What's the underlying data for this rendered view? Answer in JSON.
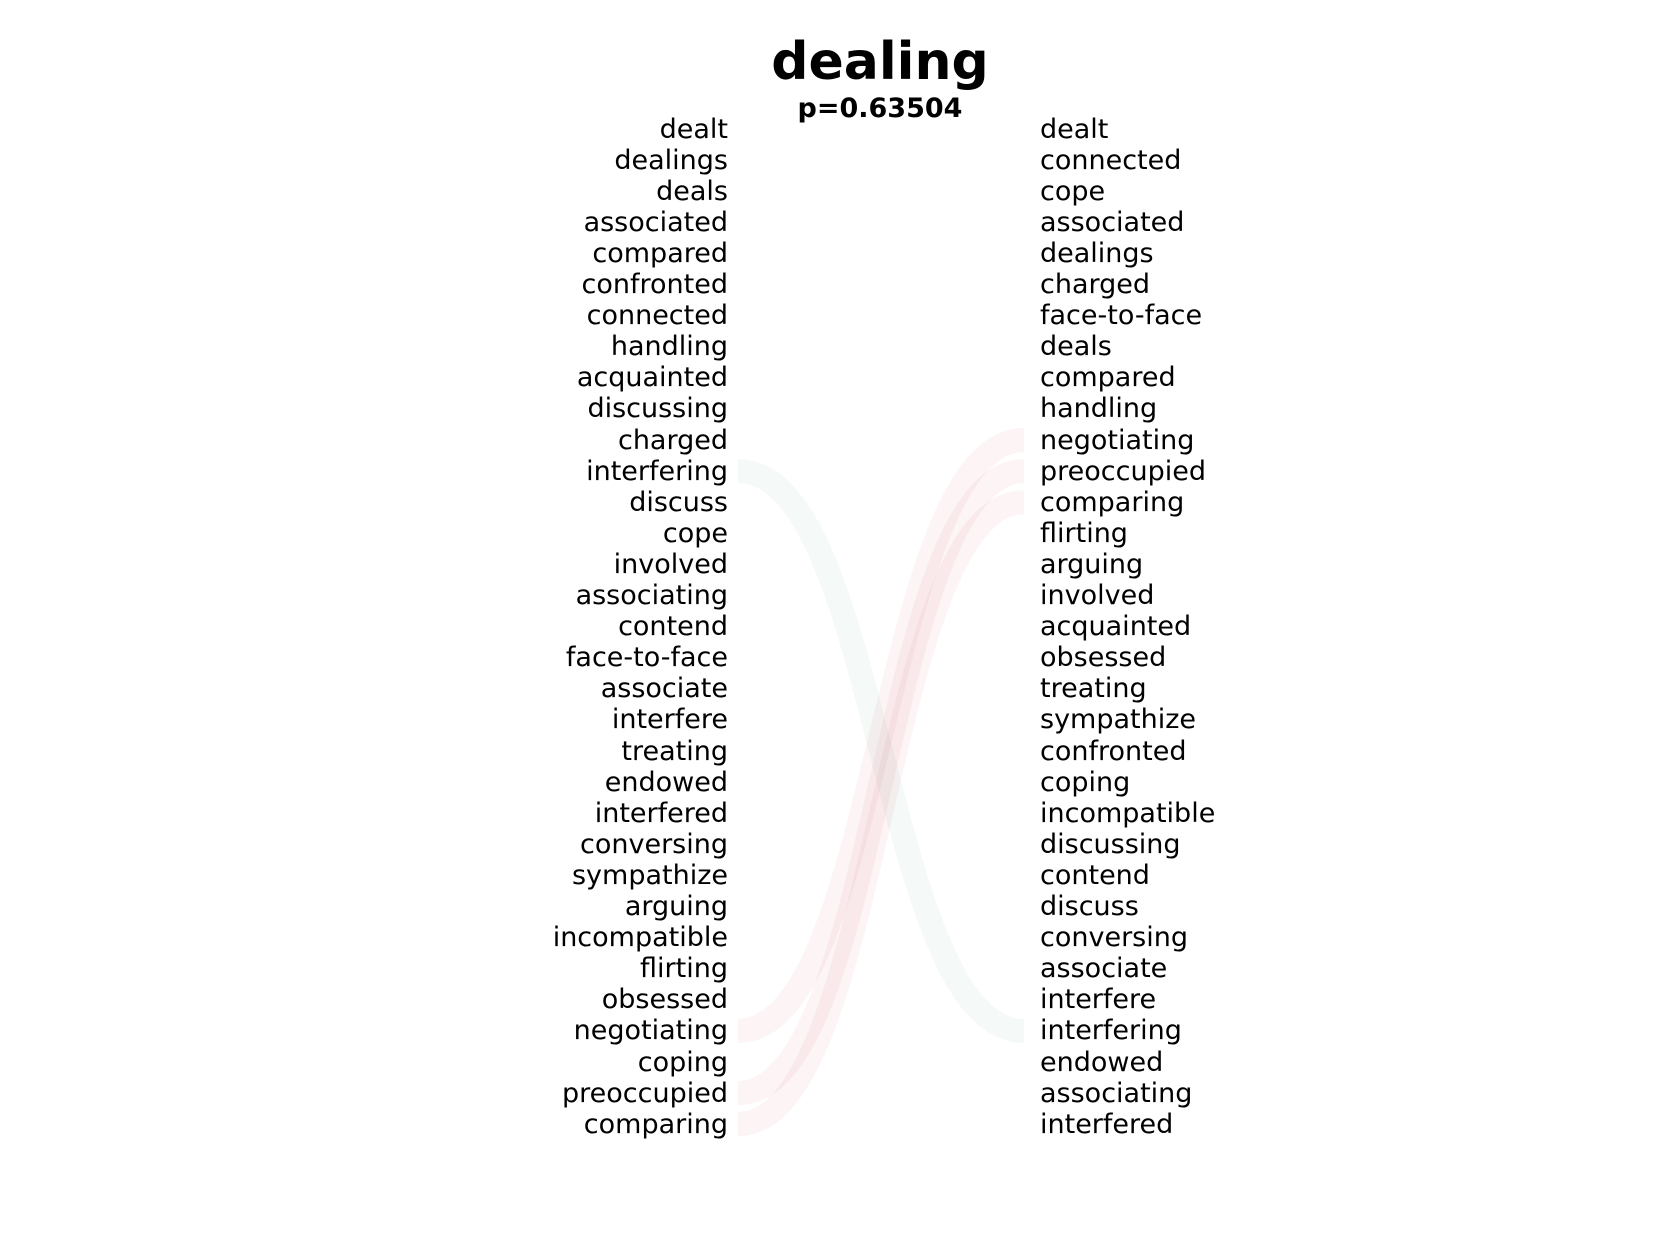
{
  "title": "dealing",
  "subtitle": "p=0.63504",
  "left_words": [
    "dealt",
    "dealings",
    "deals",
    "associated",
    "compared",
    "confronted",
    "connected",
    "handling",
    "acquainted",
    "discussing",
    "charged",
    "interfering",
    "discuss",
    "cope",
    "involved",
    "associating",
    "contend",
    "face-to-face",
    "associate",
    "interfere",
    "treating",
    "endowed",
    "interfered",
    "conversing",
    "sympathize",
    "arguing",
    "incompatible",
    "flirting",
    "obsessed",
    "negotiating",
    "coping",
    "preoccupied",
    "comparing"
  ],
  "right_words": [
    "dealt",
    "connected",
    "cope",
    "associated",
    "dealings",
    "charged",
    "face-to-face",
    "deals",
    "compared",
    "handling",
    "negotiating",
    "preoccupied",
    "comparing",
    "flirting",
    "arguing",
    "involved",
    "acquainted",
    "obsessed",
    "treating",
    "sympathize",
    "confronted",
    "coping",
    "incompatible",
    "discussing",
    "contend",
    "discuss",
    "conversing",
    "associate",
    "interfere",
    "interfering",
    "endowed",
    "associating",
    "interfered"
  ],
  "colors": {
    "left_flow": "#c0303c",
    "right_flow": "#3c9060"
  }
}
